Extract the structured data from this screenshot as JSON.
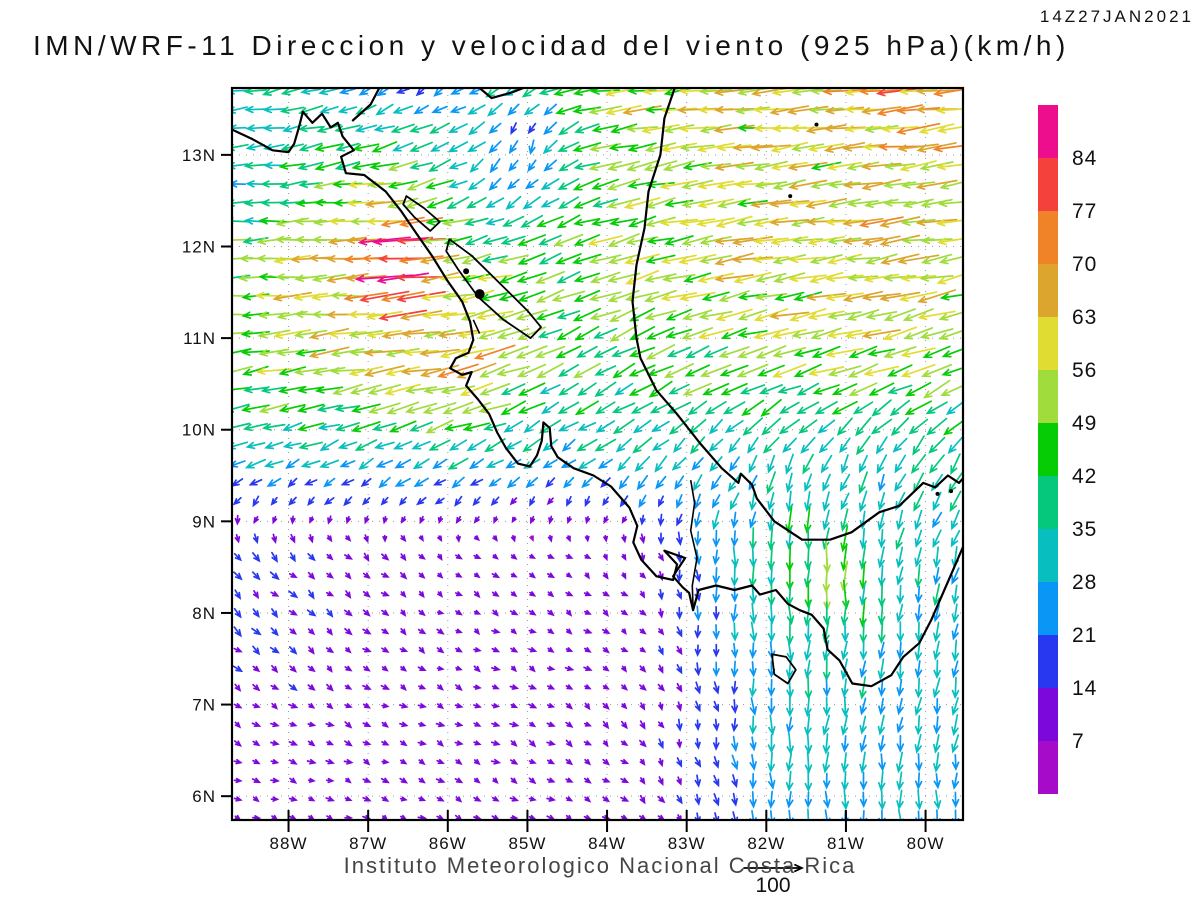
{
  "header": {
    "timestamp": "14Z27JAN2021",
    "title": "IMN/WRF-11 Direccion y velocidad del viento (925 hPa)(km/h)"
  },
  "footer": {
    "caption": "Instituto Meteorologico Nacional Costa Rica",
    "reference_arrow_label": "100"
  },
  "colorbar": {
    "units": "km/h",
    "levels": [
      7,
      14,
      21,
      28,
      35,
      42,
      49,
      56,
      63,
      70,
      77,
      84
    ],
    "colors_low_to_high": [
      "#A50BC8",
      "#7D08DC",
      "#2837F0",
      "#0A96F5",
      "#09BEBE",
      "#05C87D",
      "#05CC05",
      "#A0DC3C",
      "#E1DC32",
      "#DCA52D",
      "#F08228",
      "#F5413C",
      "#EC0E8C"
    ]
  },
  "axes": {
    "lon_range": [
      -88.71,
      -79.53
    ],
    "lat_range": [
      5.74,
      13.73
    ],
    "lon_ticks": [
      {
        "value": -88,
        "label": "88W"
      },
      {
        "value": -87,
        "label": "87W"
      },
      {
        "value": -86,
        "label": "86W"
      },
      {
        "value": -85,
        "label": "85W"
      },
      {
        "value": -84,
        "label": "84W"
      },
      {
        "value": -83,
        "label": "83W"
      },
      {
        "value": -82,
        "label": "82W"
      },
      {
        "value": -81,
        "label": "81W"
      },
      {
        "value": -80,
        "label": "80W"
      }
    ],
    "lat_ticks": [
      {
        "value": 13,
        "label": "13N"
      },
      {
        "value": 12,
        "label": "12N"
      },
      {
        "value": 11,
        "label": "11N"
      },
      {
        "value": 10,
        "label": "10N"
      },
      {
        "value": 9,
        "label": "9N"
      },
      {
        "value": 8,
        "label": "8N"
      },
      {
        "value": 7,
        "label": "7N"
      },
      {
        "value": 6,
        "label": "6N"
      }
    ]
  },
  "chart_data": {
    "type": "vector_field",
    "quantity": "wind direction and speed",
    "model": "IMN/WRF-11",
    "level": "925 hPa",
    "units": "km/h",
    "valid_time": "14Z27JAN2021",
    "reference": {
      "speed": 100
    },
    "arrow_grid": {
      "rows": 40,
      "cols": 40,
      "lat_start": 13.7,
      "lat_step": -0.2035,
      "lon_start": -88.64,
      "lon_step": 0.2312
    },
    "grid": {
      "lats": [
        13.7,
        12.7,
        11.7,
        10.7,
        9.7,
        8.7,
        7.7,
        6.7,
        5.7
      ],
      "lons": [
        -88.7,
        -87.7,
        -86.7,
        -85.7,
        -84.7,
        -83.7,
        -82.7,
        -81.7,
        -80.7,
        -79.7
      ],
      "u": [
        [
          -35,
          -32,
          -20,
          -25,
          -45,
          -55,
          -58,
          -60,
          -62,
          -65
        ],
        [
          -30,
          -45,
          -52,
          -30,
          -40,
          -50,
          -55,
          -58,
          -58,
          -60
        ],
        [
          -50,
          -58,
          -70,
          -55,
          -45,
          -48,
          -55,
          -58,
          -58,
          -58
        ],
        [
          -48,
          -55,
          -62,
          -55,
          -40,
          -38,
          -45,
          -50,
          -50,
          -48
        ],
        [
          -30,
          -28,
          -30,
          -30,
          -25,
          -25,
          -20,
          -15,
          -15,
          -20
        ],
        [
          10,
          10,
          8,
          8,
          8,
          6,
          0,
          0,
          -5,
          -8
        ],
        [
          12,
          10,
          9,
          9,
          9,
          8,
          2,
          0,
          -3,
          -5
        ],
        [
          10,
          10,
          10,
          10,
          10,
          8,
          4,
          -2,
          -5,
          -6
        ],
        [
          10,
          10,
          10,
          10,
          10,
          9,
          5,
          2,
          2,
          3
        ]
      ],
      "v": [
        [
          -5,
          -8,
          -12,
          -15,
          -10,
          -8,
          -6,
          -5,
          -5,
          -8
        ],
        [
          0,
          -5,
          -10,
          -15,
          -18,
          -12,
          -8,
          -8,
          -8,
          -8
        ],
        [
          -3,
          -3,
          -5,
          -10,
          -15,
          -15,
          -10,
          -10,
          -10,
          -12
        ],
        [
          -8,
          -8,
          -10,
          -12,
          -18,
          -20,
          -18,
          -15,
          -15,
          -18
        ],
        [
          -12,
          -13,
          -15,
          -15,
          -18,
          -20,
          -25,
          -28,
          -30,
          -30
        ],
        [
          -14,
          -10,
          -8,
          -6,
          -5,
          -8,
          -25,
          -40,
          -30,
          -30
        ],
        [
          -10,
          -8,
          -6,
          -5,
          -5,
          -6,
          -20,
          -35,
          -32,
          -30
        ],
        [
          -6,
          -5,
          -5,
          -5,
          -6,
          -8,
          -18,
          -30,
          -30,
          -28
        ],
        [
          -3,
          -3,
          -4,
          -4,
          -5,
          -6,
          -15,
          -28,
          -28,
          -26
        ]
      ]
    },
    "hotspots": [
      {
        "lon": -86.5,
        "lat": 11.8,
        "du": -24,
        "dv": -2,
        "r": 0.4
      },
      {
        "lon": -86.55,
        "lat": 12.2,
        "du": -12,
        "dv": -2,
        "r": 0.35
      },
      {
        "lon": -85.55,
        "lat": 10.7,
        "du": -10,
        "dv": -4,
        "r": 0.45
      },
      {
        "lon": -81.05,
        "lat": 8.35,
        "du": 2,
        "dv": -16,
        "r": 0.45
      },
      {
        "lon": -85.2,
        "lat": 12.6,
        "du": 16,
        "dv": 0,
        "r": 0.55
      },
      {
        "lon": -84.9,
        "lat": 13.25,
        "du": 26,
        "dv": -6,
        "r": 0.5
      },
      {
        "lon": -80.15,
        "lat": 13.6,
        "du": -8,
        "dv": -2,
        "r": 0.3
      },
      {
        "lon": -80.5,
        "lat": 12.1,
        "du": -8,
        "dv": 0,
        "r": 0.25
      }
    ]
  },
  "map": {
    "coastlines": [
      [
        [
          -88.72,
          13.28
        ],
        [
          -88.45,
          13.17
        ],
        [
          -88.2,
          13.05
        ],
        [
          -88.0,
          13.03
        ],
        [
          -87.93,
          13.12
        ],
        [
          -87.87,
          13.3
        ],
        [
          -87.82,
          13.47
        ],
        [
          -87.7,
          13.35
        ],
        [
          -87.58,
          13.45
        ],
        [
          -87.47,
          13.3
        ],
        [
          -87.38,
          13.35
        ],
        [
          -87.32,
          13.2
        ],
        [
          -87.18,
          13.05
        ],
        [
          -87.34,
          12.98
        ],
        [
          -87.28,
          12.8
        ],
        [
          -87.05,
          12.78
        ],
        [
          -86.78,
          12.6
        ],
        [
          -86.58,
          12.38
        ],
        [
          -86.4,
          12.15
        ],
        [
          -86.2,
          11.9
        ],
        [
          -86.0,
          11.62
        ],
        [
          -85.82,
          11.4
        ],
        [
          -85.72,
          11.18
        ],
        [
          -85.68,
          10.98
        ],
        [
          -85.74,
          10.84
        ],
        [
          -85.9,
          10.78
        ],
        [
          -85.97,
          10.67
        ],
        [
          -85.82,
          10.6
        ],
        [
          -85.7,
          10.63
        ],
        [
          -85.77,
          10.48
        ],
        [
          -85.62,
          10.33
        ],
        [
          -85.48,
          10.17
        ],
        [
          -85.38,
          9.97
        ],
        [
          -85.27,
          9.8
        ],
        [
          -85.12,
          9.63
        ],
        [
          -84.97,
          9.6
        ],
        [
          -84.88,
          9.72
        ],
        [
          -84.82,
          9.88
        ],
        [
          -84.8,
          10.08
        ],
        [
          -84.72,
          10.02
        ],
        [
          -84.7,
          9.82
        ],
        [
          -84.62,
          9.7
        ],
        [
          -84.42,
          9.58
        ],
        [
          -84.17,
          9.5
        ],
        [
          -83.95,
          9.38
        ],
        [
          -83.72,
          9.15
        ],
        [
          -83.62,
          8.95
        ],
        [
          -83.67,
          8.77
        ],
        [
          -83.57,
          8.58
        ],
        [
          -83.38,
          8.4
        ],
        [
          -83.17,
          8.36
        ],
        [
          -83.12,
          8.53
        ],
        [
          -83.28,
          8.68
        ],
        [
          -83.02,
          8.6
        ],
        [
          -83.17,
          8.4
        ],
        [
          -83.05,
          8.28
        ],
        [
          -82.97,
          8.22
        ],
        [
          -82.92,
          8.03
        ],
        [
          -82.85,
          8.25
        ],
        [
          -82.63,
          8.3
        ],
        [
          -82.4,
          8.25
        ],
        [
          -82.18,
          8.3
        ],
        [
          -82.08,
          8.2
        ],
        [
          -81.88,
          8.25
        ],
        [
          -81.73,
          8.1
        ],
        [
          -81.58,
          8.03
        ],
        [
          -81.43,
          7.98
        ],
        [
          -81.28,
          7.83
        ],
        [
          -81.23,
          7.6
        ],
        [
          -81.08,
          7.48
        ],
        [
          -80.92,
          7.23
        ],
        [
          -80.68,
          7.2
        ],
        [
          -80.43,
          7.32
        ],
        [
          -80.28,
          7.52
        ],
        [
          -80.08,
          7.67
        ],
        [
          -79.93,
          7.92
        ],
        [
          -79.83,
          8.12
        ],
        [
          -79.68,
          8.42
        ],
        [
          -79.58,
          8.62
        ],
        [
          -79.53,
          8.72
        ]
      ],
      [
        [
          -83.15,
          13.73
        ],
        [
          -83.28,
          13.4
        ],
        [
          -83.33,
          13.0
        ],
        [
          -83.48,
          12.6
        ],
        [
          -83.53,
          12.2
        ],
        [
          -83.63,
          11.8
        ],
        [
          -83.68,
          11.4
        ],
        [
          -83.63,
          11.0
        ],
        [
          -83.58,
          10.78
        ],
        [
          -83.38,
          10.43
        ],
        [
          -83.13,
          10.18
        ],
        [
          -82.83,
          9.85
        ],
        [
          -82.56,
          9.58
        ],
        [
          -82.35,
          9.42
        ],
        [
          -82.32,
          9.52
        ],
        [
          -82.18,
          9.4
        ],
        [
          -82.12,
          9.25
        ],
        [
          -81.9,
          9.0
        ],
        [
          -81.55,
          8.8
        ],
        [
          -81.2,
          8.8
        ],
        [
          -80.93,
          8.88
        ],
        [
          -80.58,
          9.1
        ],
        [
          -80.33,
          9.17
        ],
        [
          -80.03,
          9.42
        ],
        [
          -79.88,
          9.37
        ],
        [
          -79.72,
          9.5
        ],
        [
          -79.58,
          9.42
        ],
        [
          -79.53,
          9.47
        ]
      ],
      [
        [
          -87.2,
          13.37
        ],
        [
          -86.97,
          13.55
        ],
        [
          -86.86,
          13.73
        ]
      ],
      [
        [
          -85.6,
          13.73
        ],
        [
          -85.45,
          13.62
        ],
        [
          -85.2,
          13.68
        ],
        [
          -85.05,
          13.73
        ]
      ]
    ],
    "borders": [
      [
        [
          -82.95,
          9.45
        ],
        [
          -82.9,
          9.2
        ],
        [
          -82.95,
          8.9
        ],
        [
          -82.87,
          8.6
        ],
        [
          -82.93,
          8.3
        ],
        [
          -82.92,
          8.05
        ]
      ],
      [
        [
          -85.68,
          11.2
        ],
        [
          -85.6,
          11.05
        ]
      ]
    ],
    "lakes": [
      [
        [
          -85.98,
          12.08
        ],
        [
          -85.7,
          11.9
        ],
        [
          -85.35,
          11.6
        ],
        [
          -85.0,
          11.3
        ],
        [
          -84.83,
          11.12
        ],
        [
          -84.96,
          11.0
        ],
        [
          -85.3,
          11.2
        ],
        [
          -85.62,
          11.45
        ],
        [
          -85.87,
          11.75
        ],
        [
          -86.02,
          11.95
        ]
      ],
      [
        [
          -86.52,
          12.55
        ],
        [
          -86.3,
          12.42
        ],
        [
          -86.1,
          12.27
        ],
        [
          -86.22,
          12.17
        ],
        [
          -86.42,
          12.32
        ],
        [
          -86.56,
          12.46
        ]
      ]
    ],
    "islands_poly": [
      [
        [
          -81.93,
          7.55
        ],
        [
          -81.75,
          7.52
        ],
        [
          -81.63,
          7.38
        ],
        [
          -81.73,
          7.23
        ],
        [
          -81.9,
          7.33
        ]
      ]
    ],
    "islands_dots": [
      {
        "lon": -85.77,
        "lat": 11.73,
        "r": 3
      },
      {
        "lon": -85.6,
        "lat": 11.48,
        "r": 5
      },
      {
        "lon": -81.37,
        "lat": 13.33,
        "r": 2
      },
      {
        "lon": -81.7,
        "lat": 12.55,
        "r": 2
      },
      {
        "lon": -79.85,
        "lat": 9.3,
        "r": 2
      },
      {
        "lon": -79.68,
        "lat": 9.33,
        "r": 2
      }
    ]
  }
}
